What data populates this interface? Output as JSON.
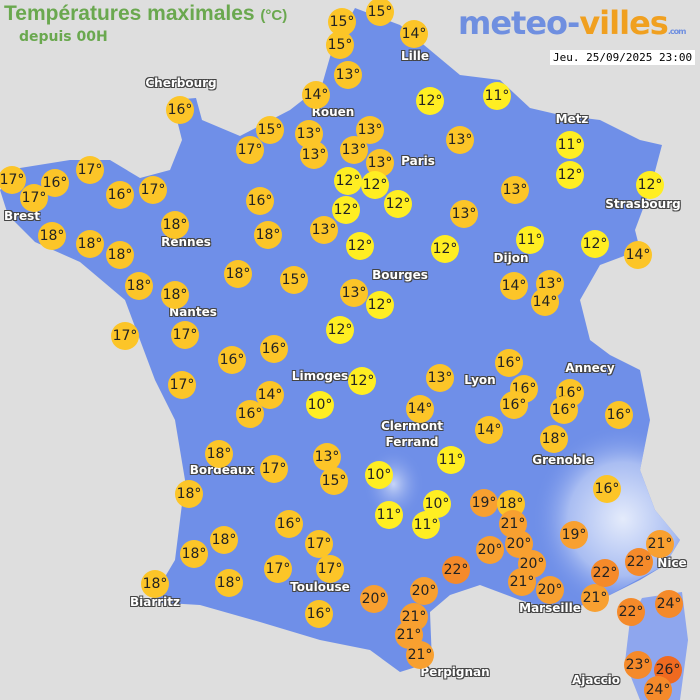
{
  "header": {
    "title": "Températures maximales",
    "unit": "(°C)",
    "subtitle": "depuis 00H",
    "logo_a": "meteo-",
    "logo_b": "villes",
    "logo_c": ".com",
    "datetime": "Jeu. 25/09/2025 23:00"
  },
  "colors": {
    "land": "#6f8fe8",
    "sea": "#dedede",
    "cold": "#ffee22",
    "mild": "#fcc528",
    "warm": "#f8a030",
    "hot": "#f58a2a",
    "veryhot": "#f06a20"
  },
  "cities": [
    "Cherbourg",
    "Lille",
    "Rouen",
    "Paris",
    "Metz",
    "Strasbourg",
    "Brest",
    "Rennes",
    "Nantes",
    "Bourges",
    "Dijon",
    "Limoges",
    "Lyon",
    "Annecy",
    "Clermont",
    "Ferrand",
    "Grenoble",
    "Bordeaux",
    "Nice",
    "Toulouse",
    "Marseille",
    "Biarritz",
    "Perpignan",
    "Ajaccio"
  ],
  "temperatures": [
    "15°",
    "15°",
    "15°",
    "14°",
    "13°",
    "14°",
    "16°",
    "15°",
    "17°",
    "13°",
    "13°",
    "13°",
    "13°",
    "13°",
    "12°",
    "12°",
    "12°",
    "12°",
    "12°",
    "11°",
    "13°",
    "11°",
    "12°",
    "13°",
    "12°",
    "13°",
    "11°",
    "12°",
    "14°",
    "12°",
    "12°",
    "13°",
    "18°",
    "16°",
    "18°",
    "17°",
    "16°",
    "17°",
    "16°",
    "17°",
    "17°",
    "18°",
    "18°",
    "18°",
    "18°",
    "18°",
    "18°",
    "15°",
    "13°",
    "12°",
    "12°",
    "17°",
    "17°",
    "17°",
    "16°",
    "16°",
    "14°",
    "16°",
    "12°",
    "10°",
    "13°",
    "14°",
    "14°",
    "13°",
    "14°",
    "16°",
    "16°",
    "16°",
    "16°",
    "16°",
    "16°",
    "18°",
    "14°",
    "11°",
    "18°",
    "17°",
    "13°",
    "15°",
    "10°",
    "16°",
    "18°",
    "10°",
    "11°",
    "11°",
    "19°",
    "18°",
    "21°",
    "20°",
    "20°",
    "19°",
    "22°",
    "20°",
    "21°",
    "20°",
    "21°",
    "22°",
    "21°",
    "22°",
    "20°",
    "20°",
    "21°",
    "21°",
    "21°",
    "22°",
    "24°",
    "23°",
    "26°",
    "24°",
    "18°",
    "18°",
    "16°",
    "17°",
    "17°",
    "17°",
    "18°",
    "18°",
    "16°"
  ]
}
